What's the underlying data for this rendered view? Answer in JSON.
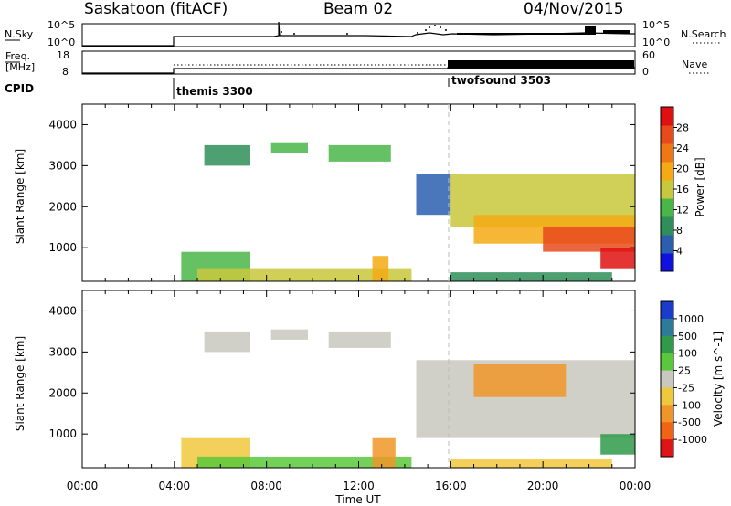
{
  "header": {
    "station": "Saskatoon (fitACF)",
    "beam": "Beam 02",
    "date": "04/Nov/2015"
  },
  "panels": {
    "nsky_label": "N.Sky",
    "nsky_ticks": [
      "10^5",
      "10^0"
    ],
    "nsearch_label": "N.Search",
    "nsearch_ticks": [
      "10^5",
      "10^0"
    ],
    "freq_label_1": "Freq.",
    "freq_label_2": "[MHz]",
    "freq_ticks": [
      "18",
      "8"
    ],
    "nave_label": "Nave",
    "nave_ticks": [
      "60",
      "0"
    ],
    "cpid_label": "CPID",
    "cpid_modes": [
      "themis 3300",
      "twofsound 3503"
    ]
  },
  "time_axis": {
    "label": "Time UT",
    "ticks": [
      "00:00",
      "04:00",
      "08:00",
      "12:00",
      "16:00",
      "20:00",
      "00:00"
    ]
  },
  "colors": {
    "power_scale": [
      "#1010e0",
      "#2a5fb0",
      "#2f8f5a",
      "#4ab648",
      "#c8c83c",
      "#f5aa14",
      "#f07814",
      "#e84a1c",
      "#e01010"
    ],
    "velocity_scale": [
      "#1a3ccc",
      "#2e7a9a",
      "#2f9a4a",
      "#5ac83c",
      "#c8c8c0",
      "#f0c83c",
      "#f09628",
      "#f06414",
      "#e01414"
    ]
  },
  "chart_data": [
    {
      "type": "heatmap",
      "panel": "power",
      "ylabel": "Slant Range [km]",
      "xlabel": "Time UT",
      "xlim": [
        0,
        24
      ],
      "ylim": [
        180,
        4500
      ],
      "y_ticks": [
        1000,
        2000,
        3000,
        4000
      ],
      "colorbar": {
        "label": "Power [dB]",
        "ticks": [
          4,
          8,
          12,
          16,
          20,
          24,
          28
        ],
        "range": [
          0,
          32
        ]
      },
      "regions": [
        {
          "t0": 5.3,
          "t1": 7.3,
          "r0": 3000,
          "r1": 3500,
          "level": 0.3
        },
        {
          "t0": 8.2,
          "t1": 9.8,
          "r0": 3300,
          "r1": 3550,
          "level": 0.32
        },
        {
          "t0": 10.7,
          "t1": 13.4,
          "r0": 3100,
          "r1": 3500,
          "level": 0.35
        },
        {
          "t0": 4.3,
          "t1": 7.3,
          "r0": 180,
          "r1": 900,
          "level": 0.4
        },
        {
          "t0": 5.0,
          "t1": 14.3,
          "r0": 180,
          "r1": 500,
          "level": 0.5
        },
        {
          "t0": 12.6,
          "t1": 13.3,
          "r0": 180,
          "r1": 800,
          "level": 0.65
        },
        {
          "t0": 14.5,
          "t1": 16.0,
          "r0": 1800,
          "r1": 2800,
          "level": 0.18
        },
        {
          "t0": 16.0,
          "t1": 24.0,
          "r0": 1500,
          "r1": 2800,
          "level": 0.45
        },
        {
          "t0": 17.0,
          "t1": 24.0,
          "r0": 1100,
          "r1": 1800,
          "level": 0.68
        },
        {
          "t0": 20.0,
          "t1": 24.0,
          "r0": 900,
          "r1": 1500,
          "level": 0.82
        },
        {
          "t0": 22.5,
          "t1": 24.0,
          "r0": 500,
          "r1": 1000,
          "level": 0.95
        },
        {
          "t0": 16.0,
          "t1": 23.0,
          "r0": 180,
          "r1": 400,
          "level": 0.25
        }
      ]
    },
    {
      "type": "heatmap",
      "panel": "velocity",
      "ylabel": "Slant Range [km]",
      "xlabel": "Time UT",
      "xlim": [
        0,
        24
      ],
      "ylim": [
        180,
        4500
      ],
      "y_ticks": [
        1000,
        2000,
        3000,
        4000
      ],
      "colorbar": {
        "label": "Velocity [m s^-1]",
        "ticks": [
          1000,
          500,
          100,
          25,
          -25,
          -100,
          -500,
          -1000
        ]
      },
      "regions": [
        {
          "t0": 5.3,
          "t1": 7.3,
          "r0": 3000,
          "r1": 3500,
          "level": 0.5
        },
        {
          "t0": 8.2,
          "t1": 9.8,
          "r0": 3300,
          "r1": 3550,
          "level": 0.5
        },
        {
          "t0": 10.7,
          "t1": 13.4,
          "r0": 3100,
          "r1": 3500,
          "level": 0.5
        },
        {
          "t0": 4.3,
          "t1": 7.3,
          "r0": 180,
          "r1": 900,
          "level": 0.6
        },
        {
          "t0": 5.0,
          "t1": 14.3,
          "r0": 180,
          "r1": 450,
          "level": 0.4
        },
        {
          "t0": 12.6,
          "t1": 13.6,
          "r0": 180,
          "r1": 900,
          "level": 0.7
        },
        {
          "t0": 14.5,
          "t1": 24.0,
          "r0": 900,
          "r1": 2800,
          "level": 0.5
        },
        {
          "t0": 17.0,
          "t1": 21.0,
          "r0": 1900,
          "r1": 2700,
          "level": 0.8
        },
        {
          "t0": 22.5,
          "t1": 24.0,
          "r0": 500,
          "r1": 1000,
          "level": 0.3
        },
        {
          "t0": 16.0,
          "t1": 23.0,
          "r0": 180,
          "r1": 400,
          "level": 0.65
        }
      ]
    }
  ]
}
